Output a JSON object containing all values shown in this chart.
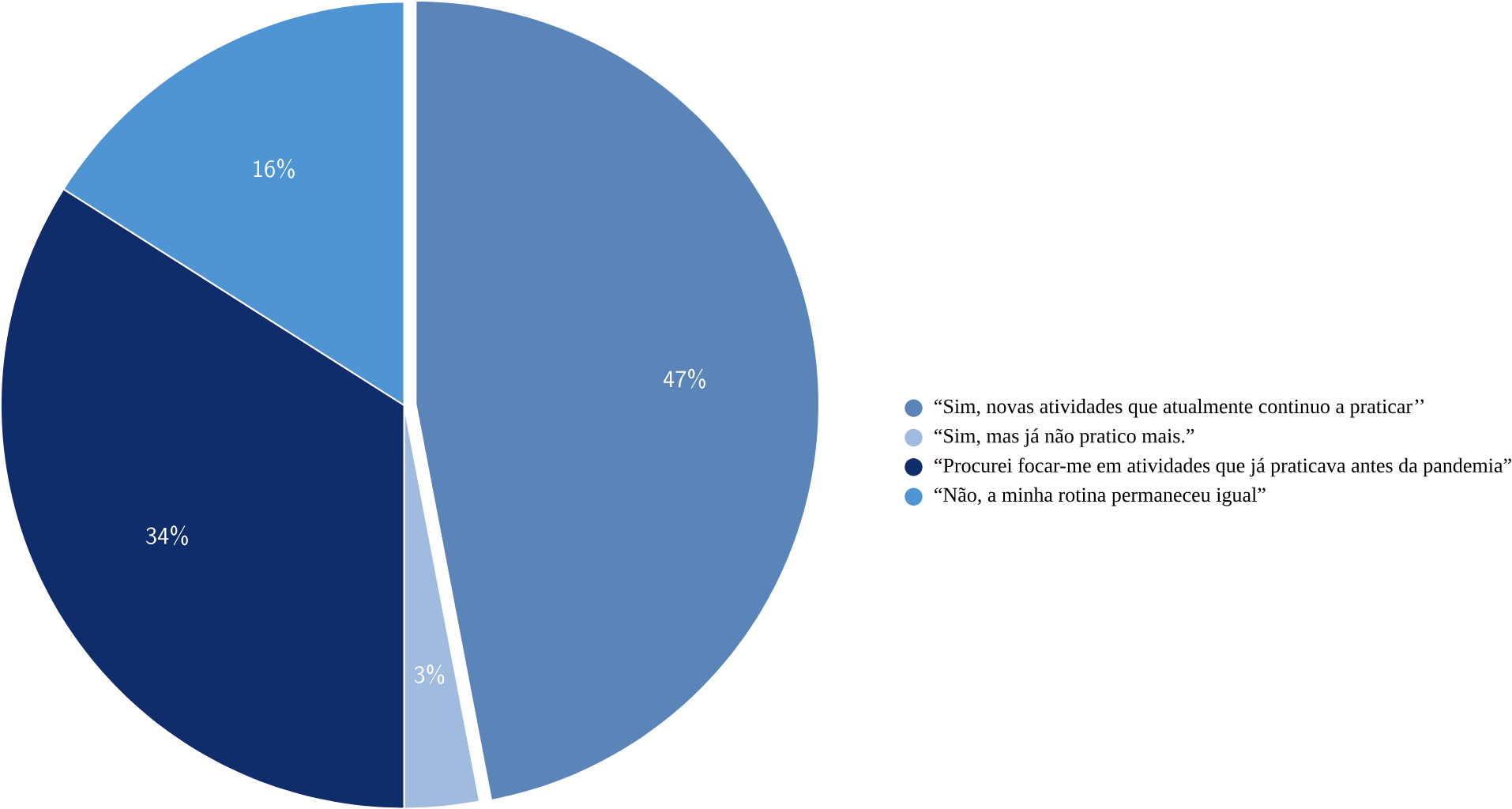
{
  "chart_data": {
    "type": "pie",
    "categories": [
      "“Sim, novas atividades que atualmente continuo a praticar’’",
      "“Sim, mas já não pratico mais.”",
      "“Procurei focar-me em atividades que já praticava antes da pandemia”",
      "“Não, a minha rotina permaneceu igual”"
    ],
    "values": [
      47,
      3,
      34,
      16
    ],
    "colors": [
      "#5b84b8",
      "#a0bbde",
      "#0f2d6b",
      "#4f95d3"
    ],
    "value_labels": [
      "47%",
      "3%",
      "34%",
      "16%"
    ],
    "legend": "right"
  }
}
